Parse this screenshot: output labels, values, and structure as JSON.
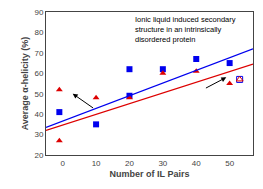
{
  "chart_data": {
    "type": "scatter",
    "title": "Ionic liquid induced secondary\nstructure in an intrinsically\ndisordered protein",
    "xlabel": "Number of IL Pairs",
    "ylabel": "Average α-helicity (%)",
    "xlim": [
      -5,
      57
    ],
    "ylim": [
      20,
      90
    ],
    "xticks": [
      0,
      10,
      20,
      30,
      40,
      50
    ],
    "yticks": [
      20,
      30,
      40,
      50,
      60,
      70,
      80,
      90
    ],
    "grid": false,
    "series": [
      {
        "type": "scatter",
        "marker": "square",
        "color": "#0000EE",
        "x": [
          -1,
          10,
          20,
          20,
          30,
          40,
          50
        ],
        "values": [
          41,
          35,
          49,
          62,
          62,
          67,
          65
        ]
      },
      {
        "type": "scatter",
        "marker": "square-open",
        "color": "#0000EE",
        "x": [
          53
        ],
        "values": [
          57
        ]
      },
      {
        "type": "scatter",
        "marker": "triangle-up",
        "color": "#DD0000",
        "x": [
          -1,
          -1,
          10,
          20,
          30,
          40,
          50
        ],
        "values": [
          27,
          52,
          48,
          48,
          60,
          61,
          55
        ]
      },
      {
        "type": "scatter",
        "marker": "triangle-up-open",
        "color": "#DD0000",
        "x": [
          53
        ],
        "values": [
          57
        ]
      },
      {
        "type": "line",
        "line_style": "solid",
        "color": "#0000EE",
        "x": [
          -5,
          57
        ],
        "values": [
          33.5,
          72.0
        ]
      },
      {
        "type": "line",
        "line_style": "solid",
        "color": "#DD0000",
        "x": [
          -5,
          57
        ],
        "values": [
          32.0,
          64.5
        ]
      }
    ],
    "arrows": [
      {
        "from": [
          10,
          42
        ],
        "to": [
          3,
          50
        ]
      },
      {
        "from": [
          42,
          52
        ],
        "to": [
          49,
          58
        ]
      }
    ]
  }
}
